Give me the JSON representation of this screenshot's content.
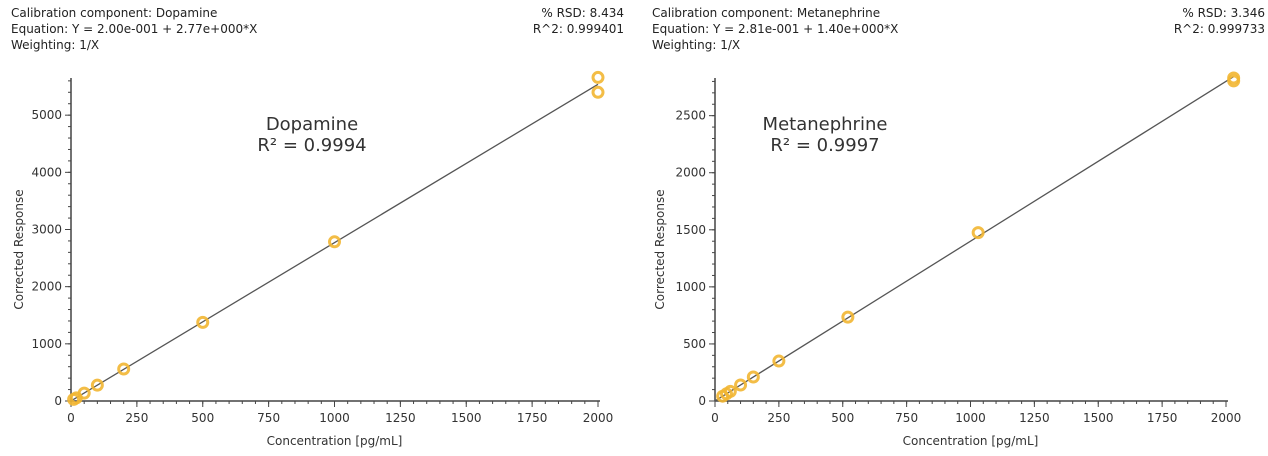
{
  "chart_data": [
    {
      "type": "scatter",
      "component_line": "Calibration component: Dopamine",
      "equation_line": "Equation: Y = 2.00e-001 + 2.77e+000*X",
      "weighting_line": "Weighting: 1/X",
      "rsd_line": "% RSD: 8.434",
      "r2_line": "R^2: 0.999401",
      "title": "Dopamine",
      "annotation": "R² = 0.9994",
      "xlabel": "Concentration [pg/mL]",
      "ylabel": "Corrected Response",
      "xlim": [
        0,
        2000
      ],
      "ylim": [
        0,
        5650
      ],
      "xticks": [
        0,
        250,
        500,
        750,
        1000,
        1250,
        1500,
        1750,
        2000
      ],
      "yticks": [
        0,
        1000,
        2000,
        3000,
        4000,
        5000
      ],
      "fit": {
        "intercept": 0.2,
        "slope": 2.77
      },
      "points": [
        [
          10,
          28
        ],
        [
          20,
          55
        ],
        [
          50,
          138
        ],
        [
          100,
          277
        ],
        [
          200,
          560
        ],
        [
          500,
          1375
        ],
        [
          1000,
          2785
        ],
        [
          2000,
          5400
        ],
        [
          2000,
          5660
        ]
      ],
      "point_color": "#f2b632"
    },
    {
      "type": "scatter",
      "component_line": "Calibration component: Metanephrine",
      "equation_line": "Equation: Y = 2.81e-001 + 1.40e+000*X",
      "weighting_line": "Weighting: 1/X",
      "rsd_line": "% RSD: 3.346",
      "r2_line": "R^2: 0.999733",
      "title": "Metanephrine",
      "annotation": "R² = 0.9997",
      "xlabel": "Concentration [pg/mL]",
      "ylabel": "Corrected Response",
      "xlim": [
        0,
        2000
      ],
      "ylim": [
        0,
        2830
      ],
      "xticks": [
        0,
        250,
        500,
        750,
        1000,
        1250,
        1500,
        1750,
        2000
      ],
      "yticks": [
        0,
        500,
        1000,
        1500,
        2000,
        2500
      ],
      "fit": {
        "intercept": 0.281,
        "slope": 1.4
      },
      "points": [
        [
          30,
          42
        ],
        [
          45,
          63
        ],
        [
          60,
          84
        ],
        [
          100,
          140
        ],
        [
          150,
          210
        ],
        [
          250,
          350
        ],
        [
          520,
          735
        ],
        [
          1030,
          1475
        ],
        [
          2030,
          2805
        ],
        [
          2030,
          2830
        ]
      ],
      "point_color": "#f2b632"
    }
  ]
}
